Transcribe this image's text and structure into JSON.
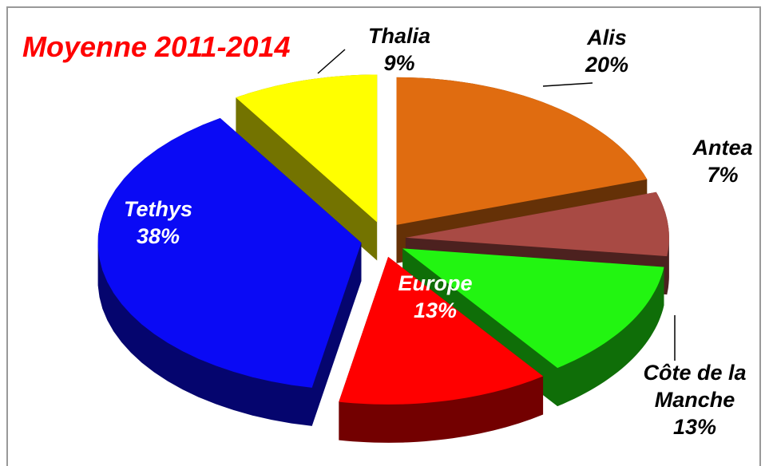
{
  "chart_data": {
    "type": "pie",
    "title": "Moyenne 2011-2014",
    "categories": [
      "Alis",
      "Antea",
      "Côte de la Manche",
      "Europe",
      "Tethys",
      "Thalia"
    ],
    "values": [
      20,
      7,
      13,
      13,
      38,
      9
    ],
    "value_labels": [
      "20%",
      "7%",
      "13%",
      "13%",
      "38%",
      "9%"
    ],
    "colors": [
      "#e06c10",
      "#a84a44",
      "#22f511",
      "#ff0000",
      "#0a0af5",
      "#ffff00"
    ]
  }
}
